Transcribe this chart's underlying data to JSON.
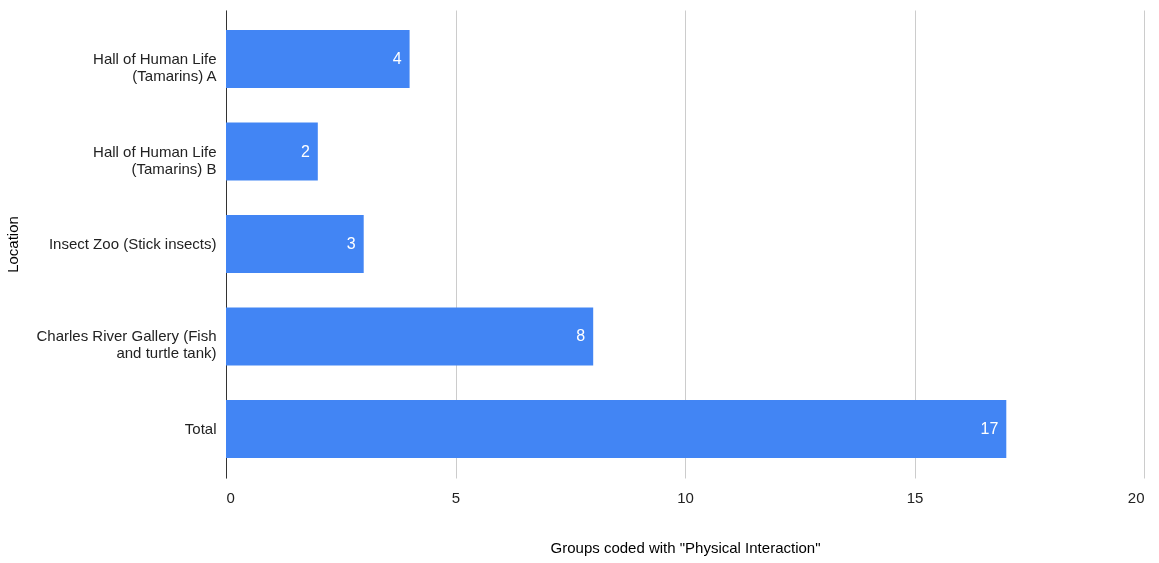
{
  "chart_data": {
    "type": "bar",
    "orientation": "horizontal",
    "xlabel": "Groups coded with \"Physical Interaction\"",
    "ylabel": "Location",
    "categories": [
      "Hall of Human Life (Tamarins) A",
      "Hall of Human Life (Tamarins) B",
      "Insect Zoo (Stick insects)",
      "Charles River Gallery (Fish and turtle tank)",
      "Total"
    ],
    "values": [
      4,
      2,
      3,
      8,
      17
    ],
    "color": "#4285f4",
    "data_labels": true,
    "xlim": [
      0,
      20
    ],
    "xticks": [
      0,
      5,
      10,
      15,
      20
    ],
    "grid": "x"
  }
}
